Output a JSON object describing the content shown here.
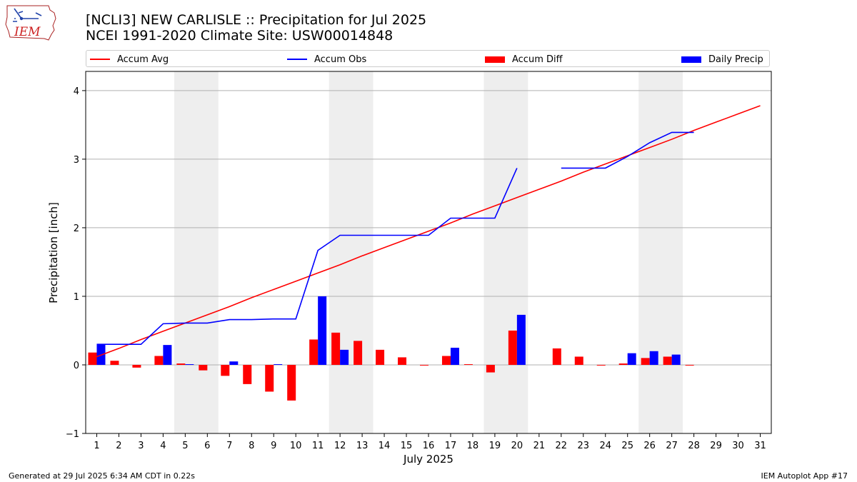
{
  "title_line1": "[NCLI3] NEW CARLISLE :: Precipitation for Jul 2025",
  "title_line2": "NCEI 1991-2020 Climate Site: USW00014848",
  "logo_text": "IEM",
  "footer_left": "Generated at 29 Jul 2025 6:34 AM CDT in 0.22s",
  "footer_right": "IEM Autoplot App #17",
  "legend": [
    {
      "label": "Accum Avg",
      "type": "line",
      "color": "#ff0000"
    },
    {
      "label": "Accum Obs",
      "type": "line",
      "color": "#0000ff"
    },
    {
      "label": "Accum Diff",
      "type": "bar",
      "color": "#ff0000"
    },
    {
      "label": "Daily Precip",
      "type": "bar",
      "color": "#0000ff"
    }
  ],
  "chart_data": {
    "type": "bar",
    "xlabel": "July 2025",
    "ylabel": "Precipitation [inch]",
    "x": [
      1,
      2,
      3,
      4,
      5,
      6,
      7,
      8,
      9,
      10,
      11,
      12,
      13,
      14,
      15,
      16,
      17,
      18,
      19,
      20,
      21,
      22,
      23,
      24,
      25,
      26,
      27,
      28,
      29,
      30,
      31
    ],
    "xlim": [
      0.5,
      31.5
    ],
    "ylim": [
      -1,
      4.28
    ],
    "yticks": [
      -1,
      0,
      1,
      2,
      3,
      4
    ],
    "grid": "y",
    "legend_position": "top",
    "weekend_shading": [
      [
        4.5,
        6.5
      ],
      [
        11.5,
        13.5
      ],
      [
        18.5,
        20.5
      ],
      [
        25.5,
        27.5
      ]
    ],
    "series": [
      {
        "name": "Accum Avg",
        "kind": "line",
        "color": "#ff0000",
        "values": [
          0.12,
          0.24,
          0.37,
          0.49,
          0.61,
          0.73,
          0.85,
          0.98,
          1.1,
          1.22,
          1.34,
          1.46,
          1.59,
          1.71,
          1.83,
          1.95,
          2.07,
          2.2,
          2.32,
          2.44,
          2.56,
          2.68,
          2.81,
          2.93,
          3.05,
          3.17,
          3.29,
          3.42,
          3.54,
          3.66,
          3.78
        ]
      },
      {
        "name": "Accum Obs",
        "kind": "line",
        "color": "#0000ff",
        "values": [
          0.3,
          0.3,
          0.3,
          0.6,
          0.61,
          0.61,
          0.66,
          0.66,
          0.67,
          0.67,
          1.67,
          1.89,
          1.89,
          1.89,
          1.89,
          1.89,
          2.14,
          2.14,
          2.14,
          2.87,
          null,
          2.87,
          2.87,
          2.87,
          3.04,
          3.24,
          3.39,
          3.39,
          null,
          null,
          null
        ]
      },
      {
        "name": "Accum Diff",
        "kind": "bar",
        "color": "#ff0000",
        "values": [
          0.18,
          0.06,
          -0.04,
          0.13,
          0.02,
          -0.08,
          -0.16,
          -0.28,
          -0.39,
          -0.52,
          0.37,
          0.47,
          0.35,
          0.22,
          0.11,
          -0.01,
          0.13,
          0.01,
          -0.11,
          0.5,
          null,
          0.24,
          0.12,
          -0.01,
          0.02,
          0.1,
          0.12,
          -0.01,
          null,
          null,
          null
        ]
      },
      {
        "name": "Daily Precip",
        "kind": "bar",
        "color": "#0000ff",
        "values": [
          0.3,
          0,
          0,
          0.29,
          0.01,
          0,
          0.05,
          0,
          0.01,
          0,
          1.0,
          0.22,
          0,
          0,
          0,
          0,
          0.25,
          0,
          0,
          0.73,
          null,
          0,
          0,
          0,
          0.17,
          0.2,
          0.15,
          0,
          null,
          null,
          null
        ]
      }
    ]
  }
}
